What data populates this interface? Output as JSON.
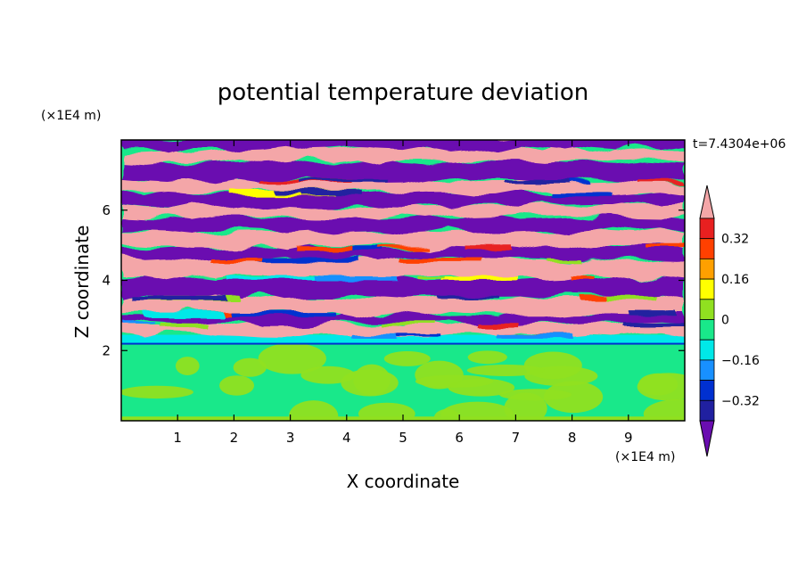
{
  "chart_data": {
    "type": "heatmap",
    "title": "potential temperature deviation",
    "xlabel": "X coordinate",
    "ylabel": "Z coordinate",
    "x_unit": "(×1E4 m)",
    "y_unit": "(×1E4 m)",
    "time_label": "t=7.4304e+06",
    "xlim": [
      0,
      10
    ],
    "ylim": [
      0,
      8
    ],
    "x_ticks": [
      "1",
      "2",
      "3",
      "4",
      "5",
      "6",
      "7",
      "8",
      "9"
    ],
    "y_ticks": [
      "2",
      "4",
      "6"
    ],
    "colorbar": {
      "levels": [
        -0.4,
        -0.32,
        -0.24,
        -0.16,
        -0.08,
        0,
        0.08,
        0.16,
        0.24,
        0.32,
        0.4
      ],
      "tick_labels": [
        "0.32",
        "0.16",
        "0",
        "−0.16",
        "−0.32"
      ],
      "colors": [
        "#6a0db0",
        "#2020a0",
        "#0030d0",
        "#1890ff",
        "#00e8e8",
        "#19e88a",
        "#90e020",
        "#ffff00",
        "#ffa000",
        "#ff4000",
        "#e82020",
        "#f4a6a8"
      ],
      "extend": "both"
    },
    "regions": [
      {
        "z_range": [
          0,
          2.2
        ],
        "description_values": [
          -0.04,
          0.04
        ]
      },
      {
        "z_range": [
          2.2,
          2.45
        ],
        "description_values": [
          -0.02
        ]
      },
      {
        "z_range": [
          2.45,
          8
        ],
        "description_values": [
          -0.45,
          0.45
        ]
      }
    ],
    "grid": false
  }
}
